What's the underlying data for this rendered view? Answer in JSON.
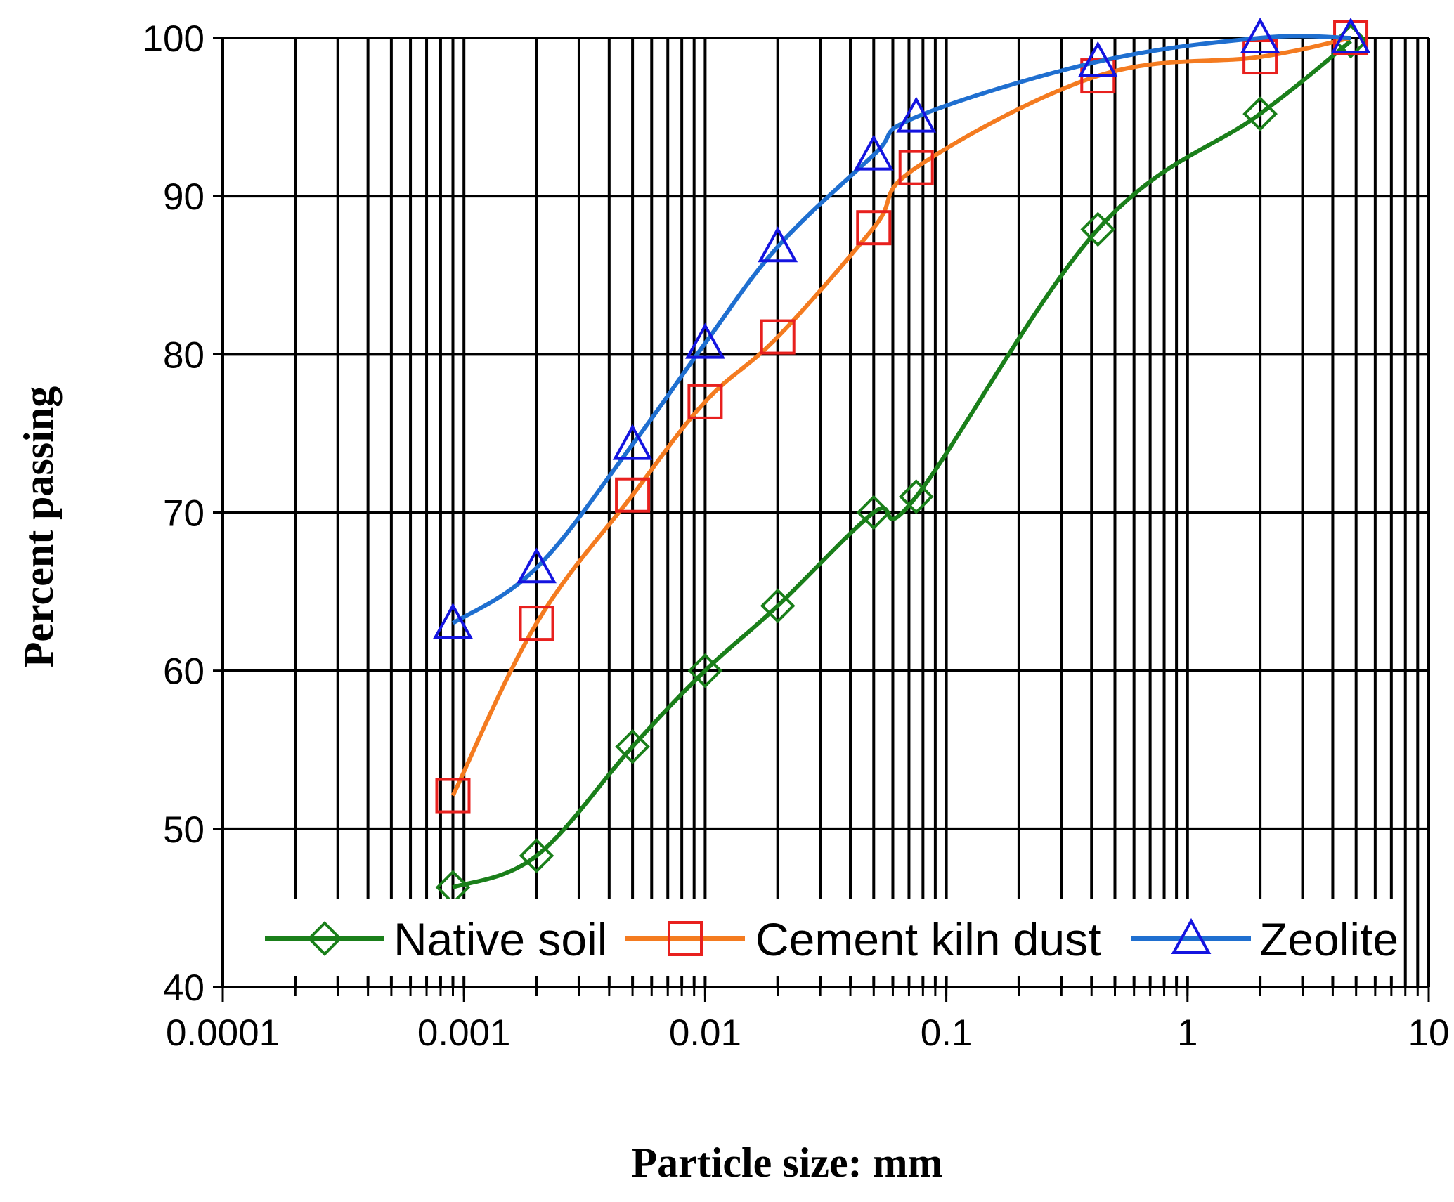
{
  "chart_data": {
    "type": "line",
    "title": "",
    "xlabel": "Particle size: mm",
    "ylabel": "Percent passing",
    "x_scale": "log",
    "xlim": [
      0.0001,
      10
    ],
    "ylim": [
      40,
      100
    ],
    "x_ticks": [
      "0.0001",
      "0.001",
      "0.01",
      "0.1",
      "1",
      "10"
    ],
    "y_ticks": [
      "40",
      "50",
      "60",
      "70",
      "80",
      "90",
      "100"
    ],
    "grid": true,
    "legend_position": "bottom-right",
    "series": [
      {
        "name": "Native soil",
        "color": "#1A7F1A",
        "marker": "diamond",
        "x": [
          0.0009,
          0.002,
          0.005,
          0.01,
          0.02,
          0.05,
          0.075,
          0.425,
          2,
          4.75
        ],
        "y": [
          46.3,
          48.3,
          55.2,
          60,
          64.1,
          70,
          71,
          87.9,
          95.2,
          99.8
        ]
      },
      {
        "name": "Cement kiln dust",
        "color": "#F47B20",
        "marker": "square",
        "x": [
          0.0009,
          0.002,
          0.005,
          0.01,
          0.02,
          0.05,
          0.075,
          0.425,
          2,
          4.75
        ],
        "y": [
          52.1,
          63,
          71.1,
          77,
          81.1,
          88,
          91.8,
          97.6,
          98.8,
          100
        ]
      },
      {
        "name": "Zeolite",
        "color": "#1F6FD0",
        "marker": "triangle",
        "x": [
          0.0009,
          0.002,
          0.005,
          0.01,
          0.02,
          0.05,
          0.075,
          0.425,
          2,
          4.75
        ],
        "y": [
          63,
          66.5,
          74.3,
          80.7,
          86.8,
          92.6,
          95,
          98.5,
          100,
          100
        ]
      }
    ]
  }
}
